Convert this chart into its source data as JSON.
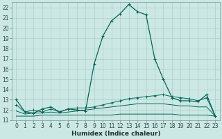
{
  "title": "",
  "xlabel": "Humidex (Indice chaleur)",
  "ylabel": "",
  "bg_color": "#cce8e4",
  "grid_color": "#aaceca",
  "line_color": "#006655",
  "xlim": [
    -0.5,
    23.5
  ],
  "ylim": [
    11,
    22.5
  ],
  "xticks": [
    0,
    1,
    2,
    3,
    4,
    5,
    6,
    7,
    8,
    9,
    10,
    11,
    12,
    13,
    14,
    15,
    16,
    17,
    18,
    19,
    20,
    21,
    22,
    23
  ],
  "yticks": [
    11,
    12,
    13,
    14,
    15,
    16,
    17,
    18,
    19,
    20,
    21,
    22
  ],
  "series1_x": [
    0,
    1,
    2,
    3,
    4,
    5,
    6,
    7,
    8,
    9,
    10,
    11,
    12,
    13,
    14,
    15,
    16,
    17,
    18,
    19,
    20,
    21,
    22,
    23
  ],
  "series1_y": [
    13.0,
    11.8,
    11.7,
    12.1,
    12.3,
    11.8,
    12.1,
    12.0,
    11.9,
    16.5,
    19.2,
    20.7,
    21.4,
    22.3,
    21.6,
    21.3,
    17.0,
    15.0,
    13.2,
    12.9,
    12.9,
    12.8,
    13.5,
    11.4
  ],
  "series2_x": [
    0,
    1,
    2,
    3,
    4,
    5,
    6,
    7,
    8,
    9,
    10,
    11,
    12,
    13,
    14,
    15,
    16,
    17,
    18,
    19,
    20,
    21,
    22,
    23
  ],
  "series2_y": [
    12.5,
    11.8,
    12.0,
    11.8,
    12.1,
    11.8,
    12.1,
    12.2,
    12.2,
    12.3,
    12.5,
    12.7,
    12.9,
    13.1,
    13.2,
    13.3,
    13.4,
    13.5,
    13.3,
    13.2,
    13.1,
    12.9,
    13.2,
    11.4
  ],
  "series3_x": [
    0,
    1,
    2,
    3,
    4,
    5,
    6,
    7,
    8,
    9,
    10,
    11,
    12,
    13,
    14,
    15,
    16,
    17,
    18,
    19,
    20,
    21,
    22,
    23
  ],
  "series3_y": [
    11.9,
    11.6,
    11.7,
    11.7,
    11.8,
    11.7,
    11.8,
    11.9,
    12.0,
    12.1,
    12.2,
    12.3,
    12.4,
    12.5,
    12.6,
    12.6,
    12.6,
    12.6,
    12.5,
    12.4,
    12.4,
    12.3,
    12.3,
    11.4
  ],
  "series4_x": [
    0,
    1,
    2,
    3,
    4,
    5,
    6,
    7,
    8,
    9,
    10,
    11,
    12,
    13,
    14,
    15,
    16,
    17,
    18,
    19,
    20,
    21,
    22,
    23
  ],
  "series4_y": [
    11.4,
    11.4,
    11.4,
    11.5,
    11.5,
    11.5,
    11.5,
    11.5,
    11.5,
    11.5,
    11.5,
    11.5,
    11.6,
    11.6,
    11.6,
    11.6,
    11.6,
    11.6,
    11.6,
    11.5,
    11.5,
    11.5,
    11.5,
    11.4
  ]
}
